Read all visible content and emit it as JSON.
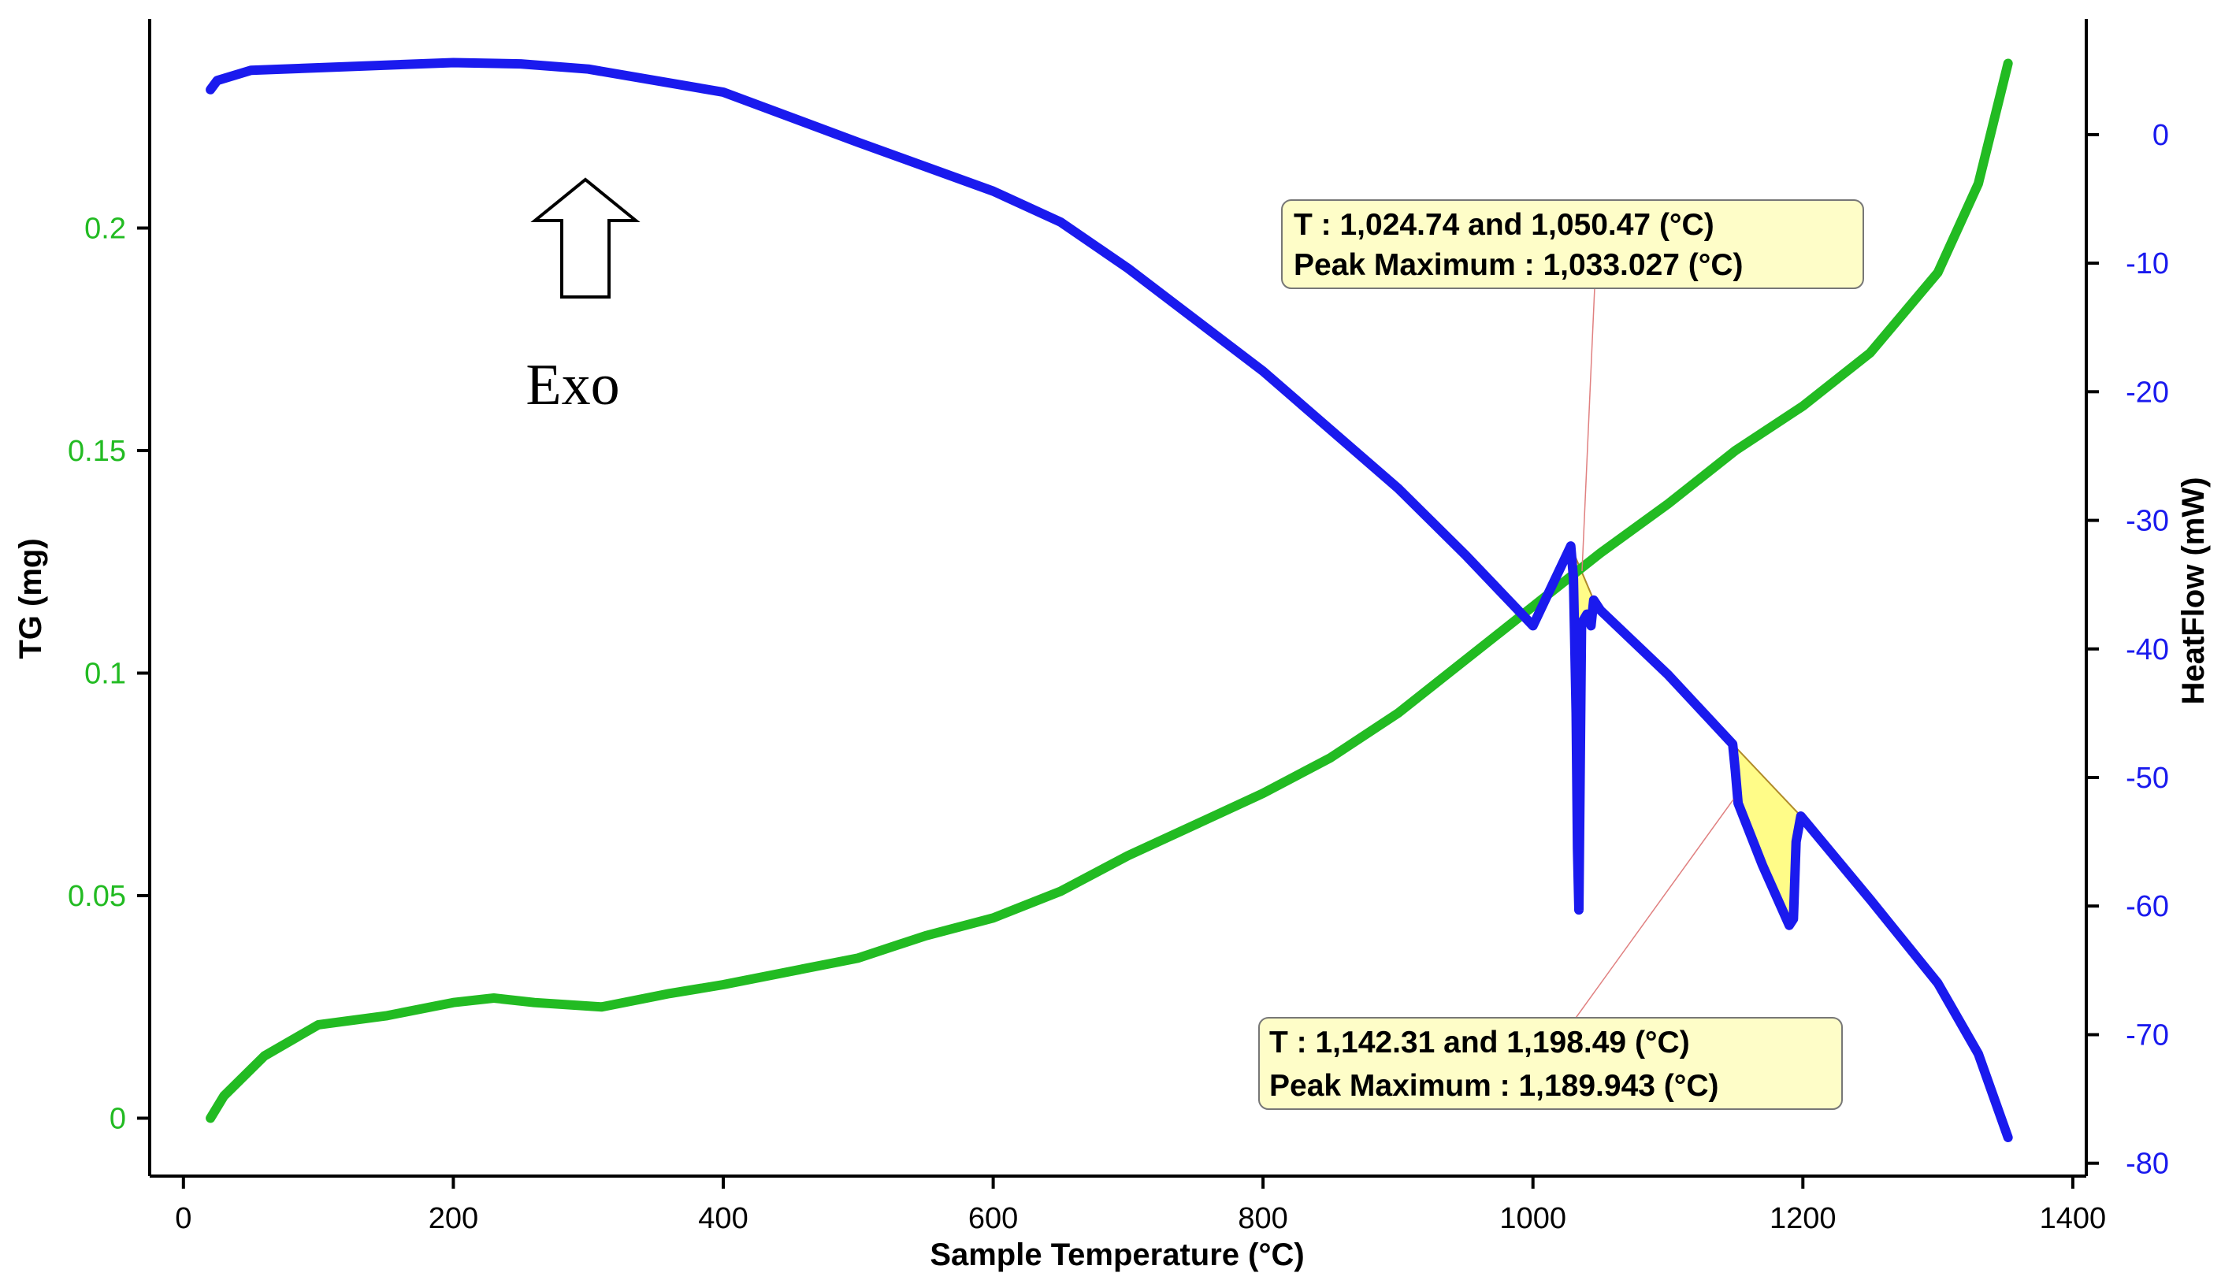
{
  "chart_data": {
    "type": "line",
    "xlabel": "Sample Temperature (°C)",
    "ylabel_left": "TG (mg)",
    "ylabel_right": "HeatFlow (mW)",
    "xlim": [
      -25,
      1410
    ],
    "ylim_left": [
      -0.013,
      0.247
    ],
    "ylim_right": [
      -81,
      9
    ],
    "x_ticks": [
      "0",
      "200",
      "400",
      "600",
      "800",
      "1000",
      "1200",
      "1400"
    ],
    "y_ticks_left": [
      "0",
      "0.05",
      "0.1",
      "0.15",
      "0.2"
    ],
    "y_ticks_right": [
      "0",
      "-10",
      "-20",
      "-30",
      "-40",
      "-50",
      "-60",
      "-70",
      "-80"
    ],
    "grid": false,
    "colors": {
      "tg": "#22bb22",
      "heatflow": "#1a1aee",
      "axis_left_ticks": "#22bb22",
      "axis_right_ticks": "#1a1aee",
      "annotation_fill": "#fefdc8",
      "peak_fill": "#fffc88"
    },
    "series": [
      {
        "axis": "left",
        "x": [
          20,
          30,
          60,
          100,
          150,
          200,
          230,
          260,
          310,
          360,
          400,
          450,
          500,
          550,
          600,
          650,
          700,
          750,
          800,
          850,
          900,
          950,
          1000,
          1050,
          1100,
          1150,
          1200,
          1250,
          1300,
          1330,
          1352
        ],
        "values": [
          0.0,
          0.005,
          0.014,
          0.021,
          0.023,
          0.026,
          0.027,
          0.026,
          0.025,
          0.028,
          0.03,
          0.033,
          0.036,
          0.041,
          0.045,
          0.051,
          0.059,
          0.066,
          0.073,
          0.081,
          0.091,
          0.103,
          0.115,
          0.127,
          0.138,
          0.15,
          0.16,
          0.172,
          0.19,
          0.21,
          0.237
        ]
      },
      {
        "axis": "right",
        "x": [
          20,
          25,
          50,
          100,
          200,
          250,
          300,
          400,
          500,
          600,
          650,
          700,
          800,
          900,
          950,
          1000,
          1028,
          1030,
          1032,
          1033,
          1034,
          1036,
          1040,
          1043,
          1045,
          1050,
          1100,
          1148,
          1150,
          1152,
          1170,
          1189.9,
          1193,
          1195,
          1198.5,
          1250,
          1300,
          1330,
          1352
        ],
        "values": [
          3.5,
          4.2,
          5.0,
          5.2,
          5.6,
          5.5,
          5.1,
          3.3,
          -0.6,
          -4.4,
          -6.8,
          -10.4,
          -18.4,
          -27.5,
          -32.7,
          -38.2,
          -32.0,
          -34.5,
          -45.0,
          -55.5,
          -60.3,
          -38.0,
          -37.3,
          -38.2,
          -36.2,
          -37.0,
          -42.0,
          -47.4,
          -49.5,
          -52.0,
          -56.8,
          -61.5,
          -61.0,
          -55.0,
          -53.0,
          -59.5,
          -66.0,
          -71.5,
          -78.0
        ]
      }
    ],
    "annotations": [
      {
        "line1": "T : 1,024.74 and 1,050.47 (°C)",
        "line2": "Peak Maximum :  1,033.027 (°C)"
      },
      {
        "line1": "T : 1,142.31 and 1,198.49 (°C)",
        "line2": "Peak Maximum :  1,189.943 (°C)"
      }
    ],
    "exo_label": "Exo"
  }
}
